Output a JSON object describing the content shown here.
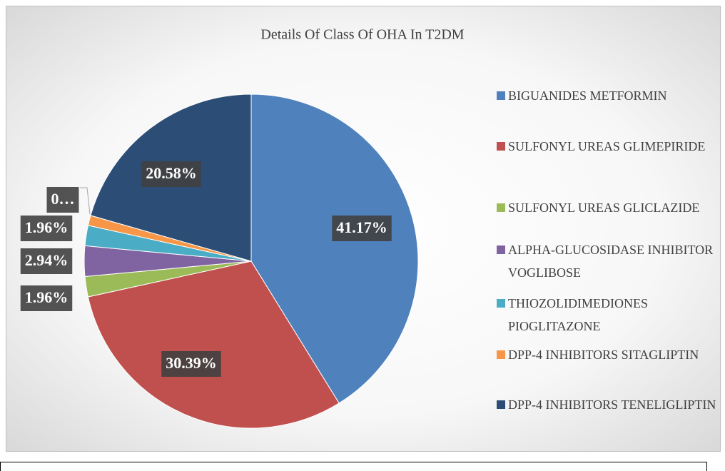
{
  "chart_data": {
    "type": "pie",
    "title": "Details Of Class Of OHA In T2DM",
    "categories": [
      "BIGUANIDES METFORMIN",
      "SULFONYL UREAS GLIMEPIRIDE",
      "SULFONYL UREAS GLICLAZIDE",
      "ALPHA-GLUCOSIDASE INHIBITOR VOGLIBOSE",
      "THIOZOLIDIMEDIONES PIOGLITAZONE",
      "DPP-4 INHIBITORS SITAGLIPTIN",
      "DPP-4 INHIBITORS TENELIGLIPTIN"
    ],
    "values": [
      41.17,
      30.39,
      1.96,
      2.94,
      1.96,
      0.98,
      20.58
    ],
    "value_labels": [
      "41.17%",
      "30.39%",
      "1.96%",
      "2.94%",
      "1.96%",
      "0…",
      "20.58%"
    ],
    "colors": [
      "#4f81bd",
      "#c0504d",
      "#9bbb59",
      "#8064a2",
      "#4bacc6",
      "#f79646",
      "#2c4d75"
    ],
    "legend": "right"
  }
}
